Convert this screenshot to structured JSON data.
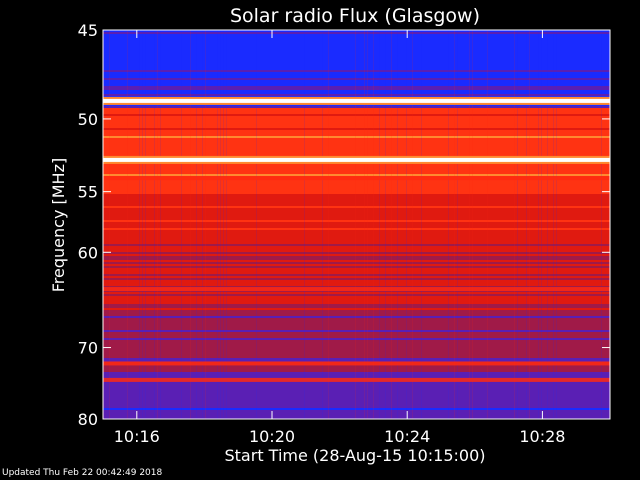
{
  "chart_data": {
    "type": "heatmap",
    "title": "Solar radio Flux (Glasgow)",
    "xlabel": "Start Time (28-Aug-15 10:15:00)",
    "ylabel": "Frequency [MHz]",
    "x_ticks": [
      "10:16",
      "10:20",
      "10:24",
      "10:28"
    ],
    "x_tick_minutes": [
      16,
      20,
      24,
      28
    ],
    "xlim_minutes": [
      15,
      30
    ],
    "y_ticks": [
      45,
      50,
      55,
      60,
      70,
      80
    ],
    "ylim": [
      45,
      80
    ],
    "y_scale": "reciprocal",
    "colormap": [
      "#000c8c",
      "#2a16d8",
      "#1a2bff",
      "#5a1fb4",
      "#a01a48",
      "#e01a10",
      "#ff3312",
      "#ff8a30",
      "#ffffff"
    ],
    "bands": [
      {
        "freq_mhz": 48.9,
        "level": "saturated"
      },
      {
        "freq_mhz": 52.7,
        "level": "saturated"
      },
      {
        "freq_mhz": 54.0,
        "level": "high"
      },
      {
        "freq_mhz": 63.5,
        "level": "high"
      },
      {
        "freq_mhz": 72.0,
        "level": "high"
      },
      {
        "freq_mhz": 74.2,
        "level": "high"
      }
    ]
  },
  "footer": {
    "updated": "Updated Thu Feb 22 00:42:49 2018"
  }
}
